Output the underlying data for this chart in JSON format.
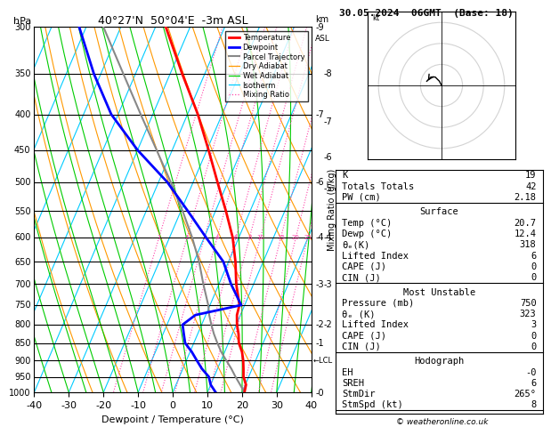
{
  "title_left": "40°27'N  50°04'E  -3m ASL",
  "title_right": "30.05.2024  06GMT  (Base: 18)",
  "xlabel": "Dewpoint / Temperature (°C)",
  "pressure_levels": [
    300,
    350,
    400,
    450,
    500,
    550,
    600,
    650,
    700,
    750,
    800,
    850,
    900,
    950,
    1000
  ],
  "isotherm_color": "#00ccff",
  "dryadiabat_color": "#ff9900",
  "wetadiabat_color": "#00cc00",
  "mixratio_color": "#ff44aa",
  "temp_color": "#ff0000",
  "dewp_color": "#0000ff",
  "parcel_color": "#888888",
  "legend_items": [
    {
      "label": "Temperature",
      "color": "#ff0000",
      "lw": 2.0,
      "ls": "-"
    },
    {
      "label": "Dewpoint",
      "color": "#0000ff",
      "lw": 2.0,
      "ls": "-"
    },
    {
      "label": "Parcel Trajectory",
      "color": "#888888",
      "lw": 1.5,
      "ls": "-"
    },
    {
      "label": "Dry Adiabat",
      "color": "#ff9900",
      "lw": 0.9,
      "ls": "-"
    },
    {
      "label": "Wet Adiabat",
      "color": "#00cc00",
      "lw": 0.9,
      "ls": "-"
    },
    {
      "label": "Isotherm",
      "color": "#00ccff",
      "lw": 0.9,
      "ls": "-"
    },
    {
      "label": "Mixing Ratio",
      "color": "#ff44aa",
      "lw": 0.9,
      "ls": ":"
    }
  ],
  "mixing_ratio_values": [
    1,
    2,
    3,
    4,
    6,
    8,
    10,
    15,
    20,
    25
  ],
  "temp_profile": {
    "pressure": [
      1000,
      975,
      950,
      925,
      900,
      875,
      850,
      825,
      800,
      775,
      750,
      700,
      650,
      600,
      550,
      500,
      450,
      400,
      350,
      300
    ],
    "temp": [
      20.7,
      20.2,
      18.5,
      17.5,
      16.4,
      15.0,
      13.0,
      11.8,
      10.2,
      9.0,
      8.5,
      5.0,
      2.0,
      -1.8,
      -7.0,
      -13.0,
      -19.5,
      -27.0,
      -36.5,
      -47.0
    ]
  },
  "dewp_profile": {
    "pressure": [
      1000,
      975,
      950,
      925,
      900,
      875,
      850,
      825,
      800,
      775,
      750,
      700,
      650,
      600,
      550,
      500,
      450,
      400,
      350,
      300
    ],
    "temp": [
      12.4,
      10.0,
      8.5,
      5.5,
      3.0,
      0.5,
      -2.5,
      -4.0,
      -5.5,
      -3.0,
      9.0,
      3.5,
      -1.5,
      -9.5,
      -18.0,
      -27.5,
      -40.0,
      -52.0,
      -62.0,
      -72.0
    ]
  },
  "parcel_profile": {
    "pressure": [
      1000,
      975,
      950,
      925,
      900,
      875,
      850,
      825,
      800,
      775,
      750,
      700,
      650,
      600,
      550,
      500,
      450,
      400,
      350,
      300
    ],
    "temp": [
      20.7,
      18.5,
      16.2,
      14.0,
      11.5,
      9.0,
      6.8,
      4.7,
      2.8,
      1.0,
      -0.5,
      -4.5,
      -8.5,
      -13.5,
      -19.5,
      -26.5,
      -34.5,
      -43.5,
      -53.5,
      -65.0
    ]
  },
  "lcl_pressure": 900,
  "info_K": 19,
  "info_TT": 42,
  "info_PW": "2.18",
  "surf_temp": "20.7",
  "surf_dewp": "12.4",
  "surf_theta_e": 318,
  "surf_li": 6,
  "surf_cape": 0,
  "surf_cin": 0,
  "mu_pres": 750,
  "mu_theta_e": 323,
  "mu_li": 3,
  "mu_cape": 0,
  "mu_cin": 0,
  "hodo_eh": "-0",
  "hodo_sreh": 6,
  "hodo_stmdir": "265°",
  "hodo_stmspd": 8,
  "km_pressure": [
    300,
    400,
    500,
    600,
    700,
    800,
    850,
    1000
  ],
  "km_values": [
    9,
    7,
    6,
    4,
    3,
    2,
    1,
    0
  ]
}
